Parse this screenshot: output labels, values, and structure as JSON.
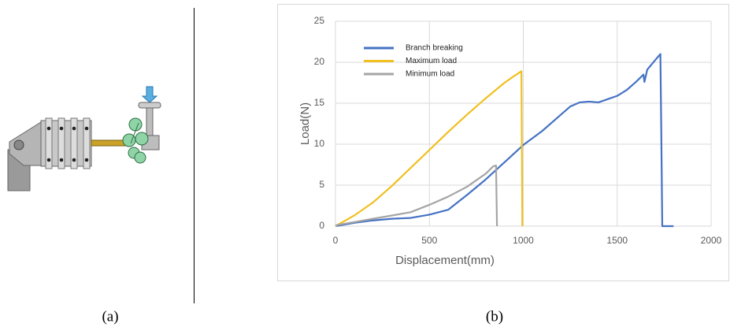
{
  "chart_data": {
    "type": "line",
    "xlabel": "Displacement(mm)",
    "ylabel": "Load(N)",
    "xlim": [
      0,
      2000
    ],
    "xticks": [
      0,
      500,
      1000,
      1500,
      2000
    ],
    "ylim": [
      0,
      25
    ],
    "yticks": [
      0,
      5,
      10,
      15,
      20,
      25
    ],
    "grid": true,
    "legend": "upper left",
    "series": [
      {
        "name": "Branch breaking",
        "color": "#4472c4",
        "x": [
          0,
          100,
          200,
          300,
          400,
          500,
          600,
          700,
          800,
          900,
          1000,
          1100,
          1200,
          1250,
          1300,
          1350,
          1400,
          1450,
          1500,
          1550,
          1600,
          1640,
          1645,
          1660,
          1700,
          1730,
          1735,
          1740,
          1800
        ],
        "values": [
          0,
          0.4,
          0.7,
          0.9,
          1.0,
          1.4,
          2.0,
          3.8,
          5.7,
          7.8,
          9.9,
          11.6,
          13.6,
          14.6,
          15.1,
          15.2,
          15.1,
          15.5,
          15.9,
          16.6,
          17.6,
          18.5,
          17.6,
          19.1,
          20.2,
          21.0,
          11,
          0,
          0
        ]
      },
      {
        "name": "Maximum load",
        "color": "#f0c020",
        "x": [
          0,
          100,
          200,
          300,
          400,
          500,
          600,
          700,
          800,
          900,
          950,
          990,
          995
        ],
        "values": [
          0,
          1.3,
          2.9,
          4.9,
          7.1,
          9.3,
          11.5,
          13.6,
          15.6,
          17.5,
          18.3,
          18.9,
          0
        ]
      },
      {
        "name": "Minimum load",
        "color": "#a5a5a5",
        "x": [
          0,
          100,
          200,
          300,
          400,
          500,
          600,
          700,
          800,
          840,
          855,
          860
        ],
        "values": [
          0.1,
          0.5,
          0.9,
          1.3,
          1.7,
          2.6,
          3.6,
          4.8,
          6.4,
          7.3,
          7.4,
          0
        ]
      }
    ]
  },
  "captions": [
    "(a)",
    "(b)"
  ]
}
